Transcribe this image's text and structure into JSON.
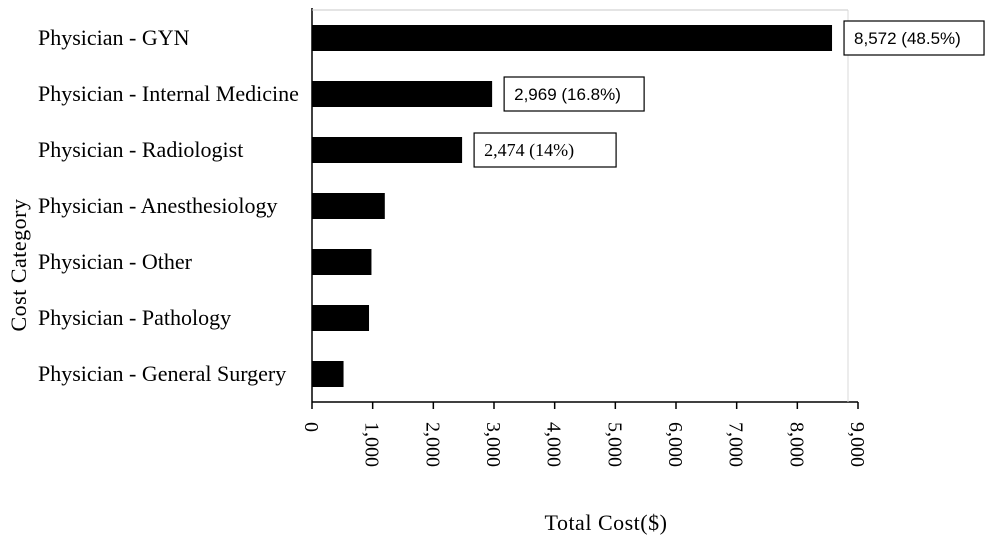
{
  "chart_data": {
    "type": "bar",
    "orientation": "horizontal",
    "title": "",
    "xlabel": "Total Cost($)",
    "ylabel": "Cost Category",
    "xlim": [
      0,
      9000
    ],
    "xticks": [
      0,
      1000,
      2000,
      3000,
      4000,
      5000,
      6000,
      7000,
      8000,
      9000
    ],
    "xtick_labels": [
      "0",
      "1,000",
      "2,000",
      "3,000",
      "4,000",
      "5,000",
      "6,000",
      "7,000",
      "8,000",
      "9,000"
    ],
    "categories": [
      "Physician - GYN",
      "Physician - Internal Medicine",
      "Physician - Radiologist",
      "Physician - Anesthesiology",
      "Physician - Other",
      "Physician - Pathology",
      "Physician - General Surgery"
    ],
    "values": [
      8572,
      2969,
      2474,
      1200,
      980,
      940,
      520
    ],
    "data_labels": [
      "8,572 (48.5%)",
      "2,969 (16.8%)",
      "2,474 (14%)",
      "",
      "",
      "",
      ""
    ],
    "bar_color": "#000000",
    "grid": false,
    "legend": "none"
  }
}
